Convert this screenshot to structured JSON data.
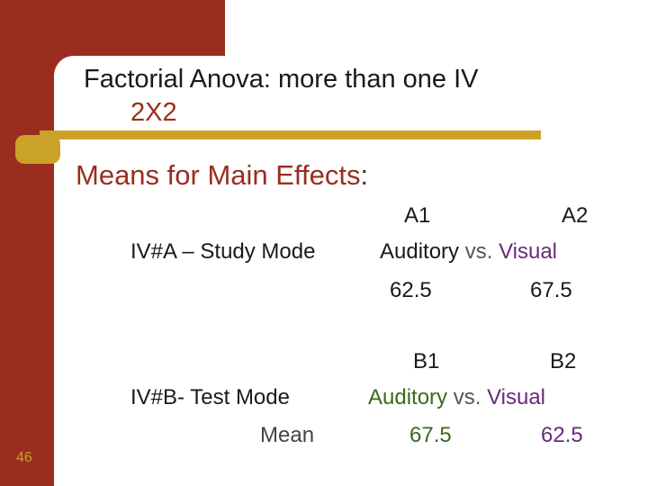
{
  "slide": {
    "title": "Factorial Anova: more than one IV",
    "subtitle": "2X2",
    "heading": "Means for Main Effects",
    "heading_colon": ":",
    "page_number": "46"
  },
  "iv_a": {
    "col1_label": "A1",
    "col2_label": "A2",
    "row_label": "IV#A – Study Mode",
    "level1": "Auditory",
    "vs": "vs.",
    "level2": "Visual",
    "mean1": "62.5",
    "mean2": "67.5"
  },
  "iv_b": {
    "col1_label": "B1",
    "col2_label": "B2",
    "row_label": "IV#B-  Test Mode",
    "mean_label": "Mean",
    "level1": "Auditory",
    "vs": "vs.",
    "level2": "Visual",
    "mean1": "67.5",
    "mean2": "62.5"
  },
  "colors": {
    "brand_red": "#9b2d1f",
    "gold": "#c9a227",
    "purple": "#6a2a7a",
    "green": "#3a6a1a"
  }
}
